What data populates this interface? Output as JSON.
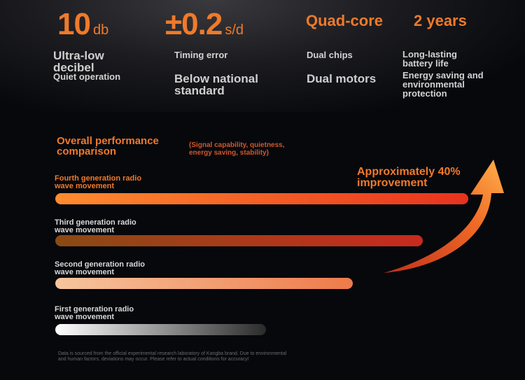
{
  "stats": [
    {
      "value": "10",
      "unit": "db",
      "label1": "Ultra-low\ndecibel",
      "label2": "Quiet operation"
    },
    {
      "value": "±0.2",
      "unit": "s/d",
      "label1": "Timing error",
      "label2": "Below national\n standard"
    },
    {
      "value": "Quad-core",
      "unit": "",
      "label1": "Dual chips",
      "label2": "Dual motors"
    },
    {
      "value": "2 years",
      "unit": "",
      "label1": "Long-lasting\n battery life",
      "label2": "Energy saving and environmental\n protection"
    }
  ],
  "colors": {
    "accent": "#f07a2a",
    "background": "#07080c"
  },
  "chart_data": {
    "type": "bar",
    "orientation": "horizontal",
    "title": "Overall performance\n comparison",
    "subtitle": "(Signal capability, quietness,\n energy saving, stability)",
    "annotation": "Approximately 40%\n improvement",
    "categories": [
      "Fourth generation radio\n wave movement",
      "Third generation radio\n wave movement",
      "Second generation radio\n wave movement",
      "First generation radio\n wave movement"
    ],
    "values": [
      100,
      89,
      72,
      51
    ],
    "value_unit": "relative performance, fourth generation = 100",
    "bar_colors": [
      [
        "#ff8c2e",
        "#e8321e"
      ],
      [
        "#8a4a14",
        "#c92a1e"
      ],
      [
        "#f7c59e",
        "#ee7a4a"
      ],
      [
        "#ffffff",
        "#2a2a2a"
      ]
    ],
    "label_colors": [
      "#f07a2a",
      "#d8d8d8",
      "#d8d8d8",
      "#d8d8d8"
    ],
    "xlim": [
      0,
      100
    ],
    "grid": false,
    "legend": "none"
  },
  "footnote": "Data is sourced from the official experimental research laboratory of Kangba brand. Due to environmental\n and human factors, deviations may occur. Please refer to actual conditions for accuracy!"
}
